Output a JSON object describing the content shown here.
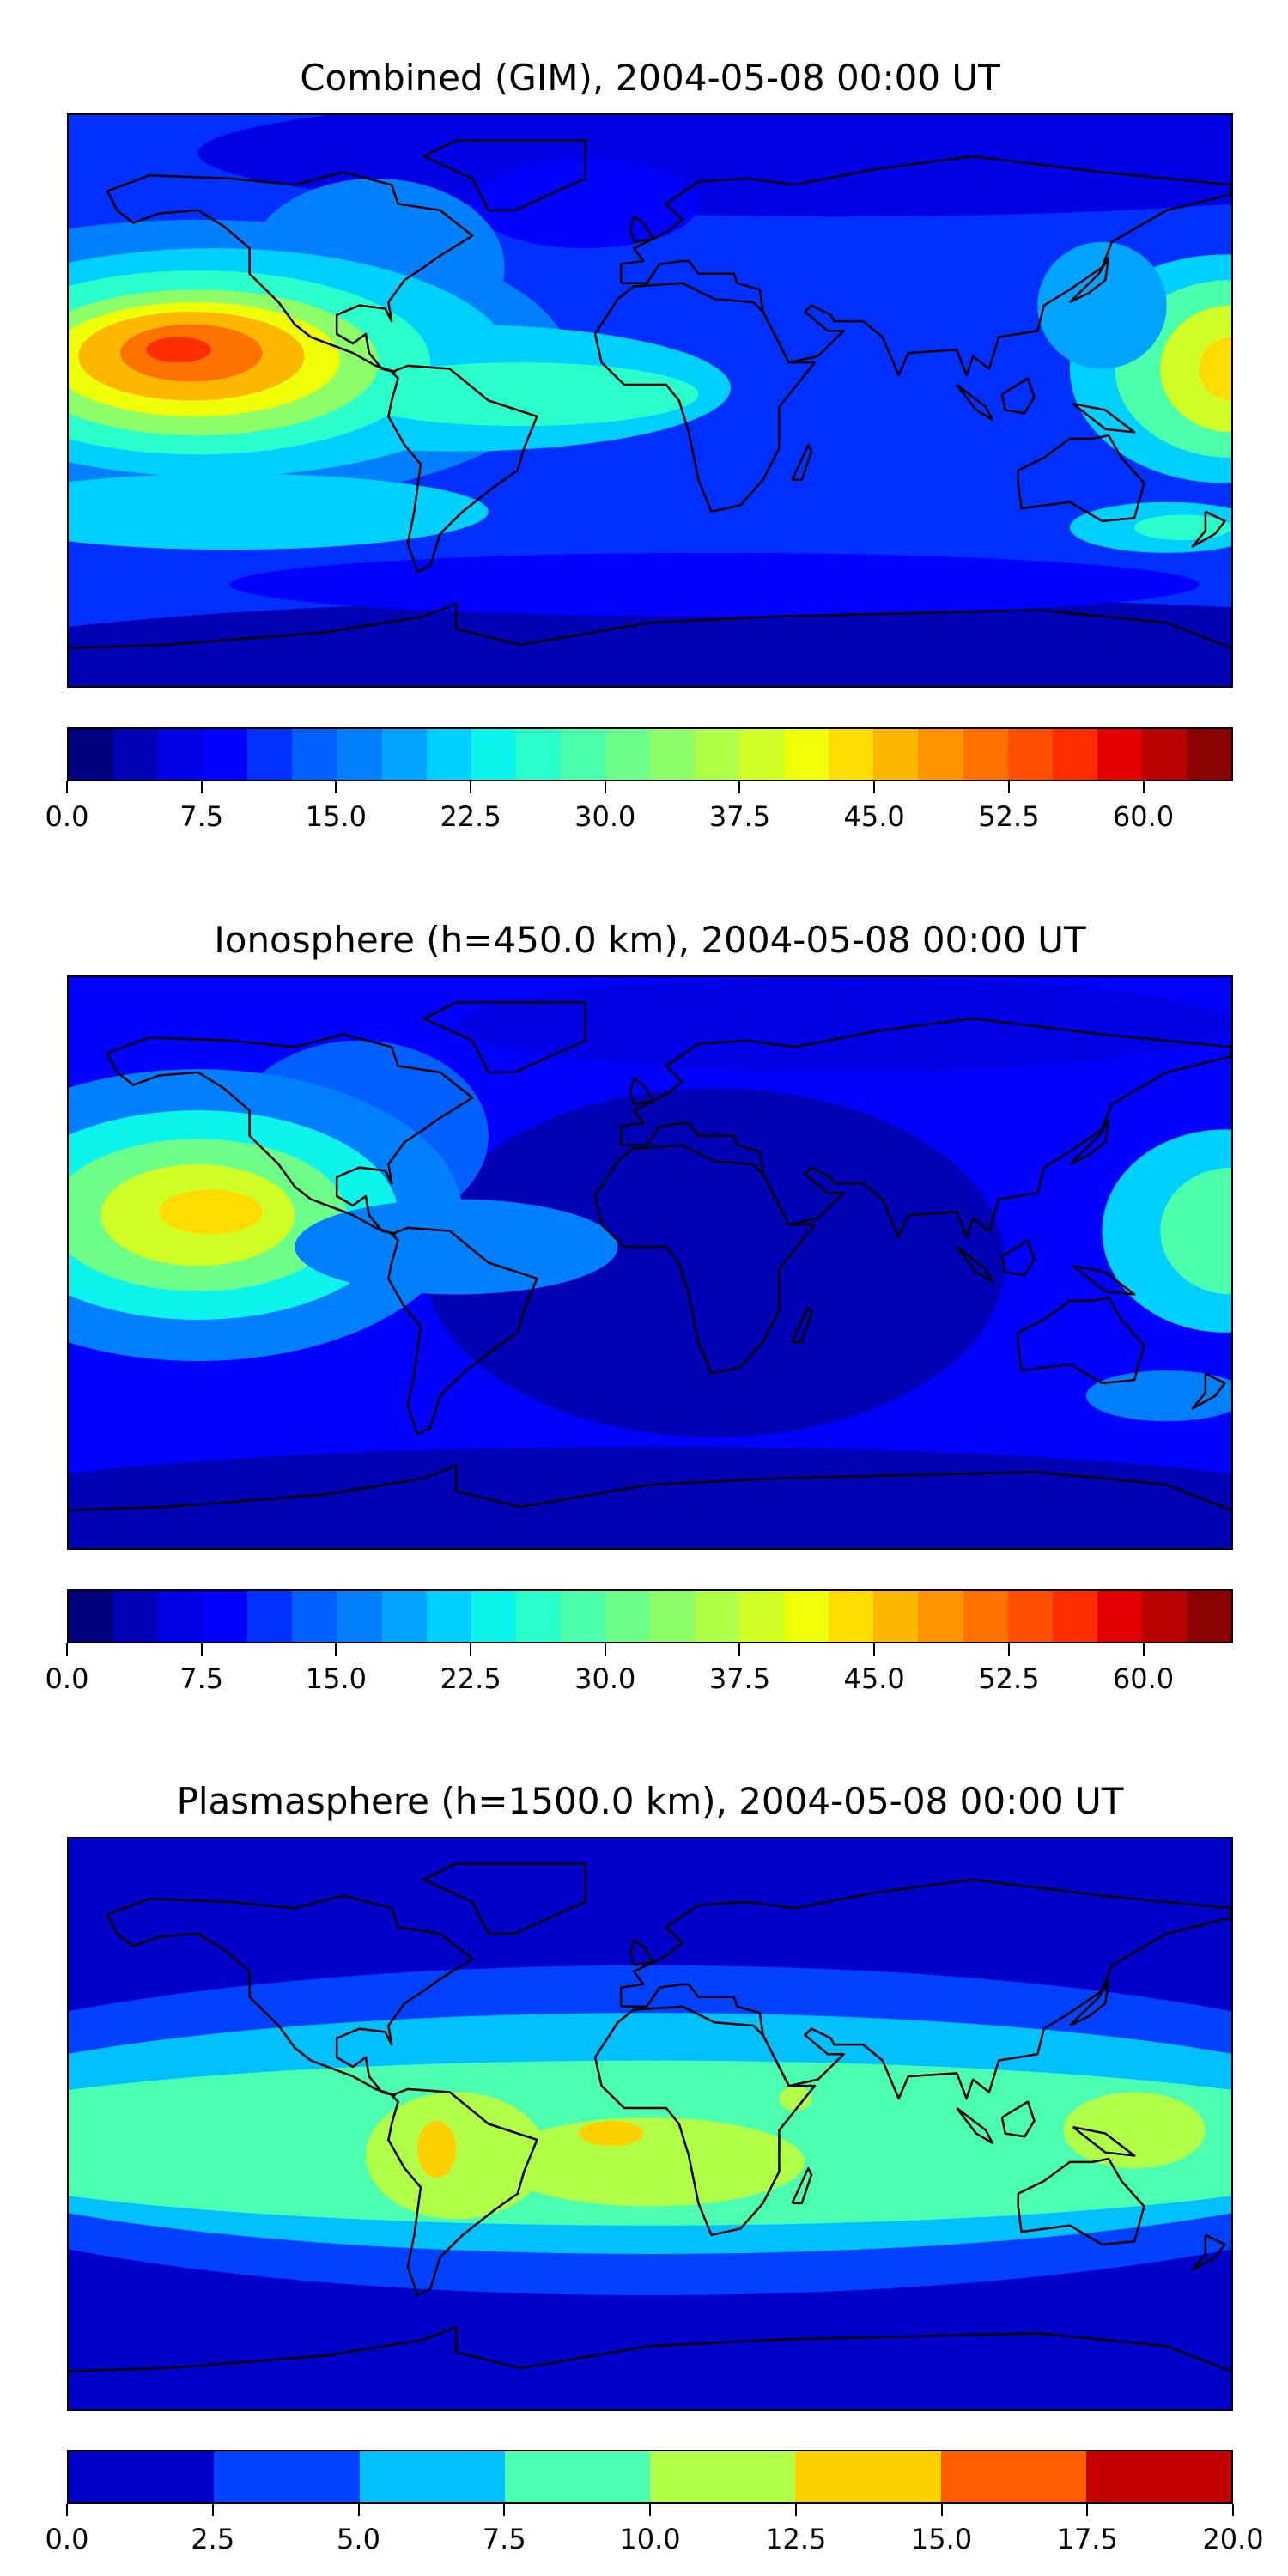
{
  "chart_data": [
    {
      "type": "heatmap",
      "title": "Combined (GIM), 2004-05-08 00:00 UT",
      "xlabel": "",
      "ylabel": "",
      "projection": "plate carree, global",
      "colorbar": {
        "range": [
          0,
          65
        ],
        "level_step": 2.5,
        "tick_labels": [
          "0.0",
          "7.5",
          "15.0",
          "22.5",
          "30.0",
          "37.5",
          "45.0",
          "52.5",
          "60.0"
        ],
        "tick_values": [
          0,
          7.5,
          15,
          22.5,
          30,
          37.5,
          45,
          52.5,
          60
        ],
        "colors": [
          "#00007f",
          "#0000b4",
          "#0000e5",
          "#0000ff",
          "#0030ff",
          "#0060ff",
          "#0080ff",
          "#00a4ff",
          "#00d0ff",
          "#0cf4eb",
          "#2affcc",
          "#4cffaa",
          "#6eff88",
          "#8eff68",
          "#aeff48",
          "#cfff27",
          "#eeff08",
          "#ffdc00",
          "#ffb700",
          "#ff9400",
          "#ff7200",
          "#ff4f00",
          "#ff2c00",
          "#e50000",
          "#b80000",
          "#8b0000"
        ]
      },
      "notes_max_region": "peak ~55 over central Pacific"
    },
    {
      "type": "heatmap",
      "title": "Ionosphere  (h=450.0 km), 2004-05-08 00:00 UT",
      "xlabel": "",
      "ylabel": "",
      "projection": "plate carree, global",
      "colorbar": {
        "range": [
          0,
          65
        ],
        "level_step": 2.5,
        "tick_labels": [
          "0.0",
          "7.5",
          "15.0",
          "22.5",
          "30.0",
          "37.5",
          "45.0",
          "52.5",
          "60.0"
        ],
        "tick_values": [
          0,
          7.5,
          15,
          22.5,
          30,
          37.5,
          45,
          52.5,
          60
        ],
        "colors": [
          "#00007f",
          "#0000b4",
          "#0000e5",
          "#0000ff",
          "#0030ff",
          "#0060ff",
          "#0080ff",
          "#00a4ff",
          "#00d0ff",
          "#0cf4eb",
          "#2affcc",
          "#4cffaa",
          "#6eff88",
          "#8eff68",
          "#aeff48",
          "#cfff27",
          "#eeff08",
          "#ffdc00",
          "#ffb700",
          "#ff9400",
          "#ff7200",
          "#ff4f00",
          "#ff2c00",
          "#e50000",
          "#b80000",
          "#8b0000"
        ]
      },
      "notes_max_region": "peak ~45 over central Pacific"
    },
    {
      "type": "heatmap",
      "title": "Plasmasphere (h=1500.0 km), 2004-05-08 00:00 UT",
      "xlabel": "",
      "ylabel": "",
      "projection": "plate carree, global",
      "colorbar": {
        "range": [
          0,
          20
        ],
        "level_step": 2.5,
        "tick_labels": [
          "0.0",
          "2.5",
          "5.0",
          "7.5",
          "10.0",
          "12.5",
          "15.0",
          "17.5",
          "20.0"
        ],
        "tick_values": [
          0,
          2.5,
          5,
          7.5,
          10,
          12.5,
          15,
          17.5,
          20
        ],
        "colors": [
          "#0000c8",
          "#0040ff",
          "#00c0ff",
          "#4cffb0",
          "#b0ff48",
          "#ffd000",
          "#ff5c00",
          "#c40000"
        ]
      },
      "notes_max_region": "peak 12.5-15 over South America and Africa"
    }
  ]
}
